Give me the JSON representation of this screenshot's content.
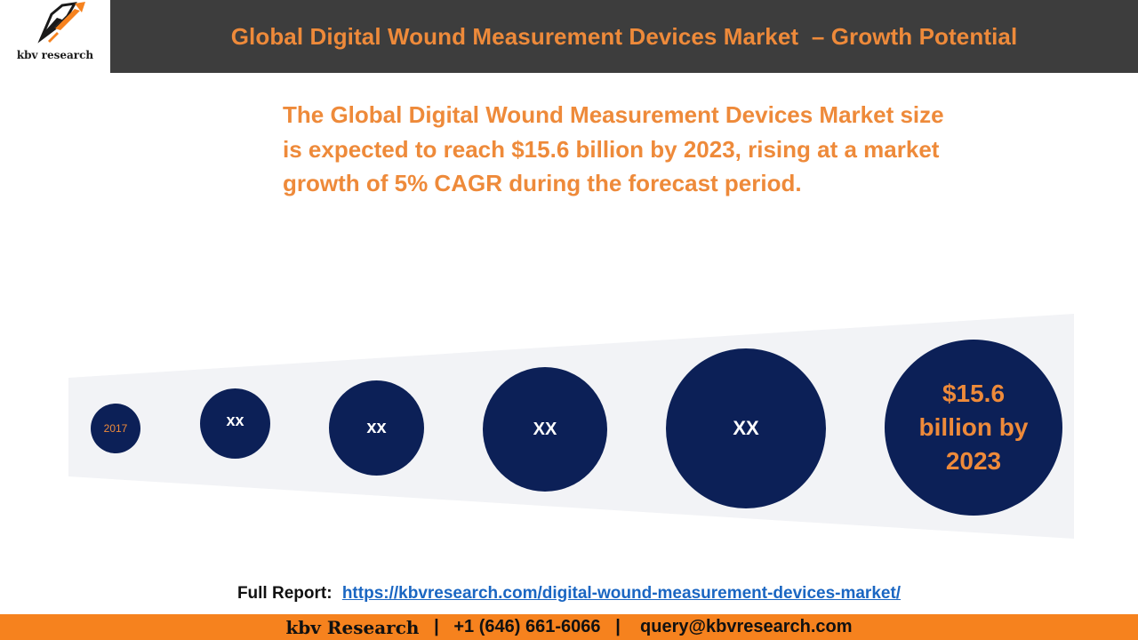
{
  "brand": {
    "logo_text": "kbv research"
  },
  "header": {
    "title": "Global Digital Wound Measurement Devices Market  – Growth Potential"
  },
  "summary": "The Global Digital Wound Measurement Devices Market size is expected to reach $15.6 billion by 2023, rising at a market growth of 5% CAGR during the forecast period.",
  "bubbles": [
    {
      "label": "2017"
    },
    {
      "label": "xx"
    },
    {
      "label": "xx"
    },
    {
      "label": "XX"
    },
    {
      "label": "XX"
    },
    {
      "label": "$15.6 billion by 2023"
    }
  ],
  "full_report": {
    "label": "Full Report:",
    "url": "https://kbvresearch.com/digital-wound-measurement-devices-market/"
  },
  "footer": {
    "brand": "kbv Research",
    "separator": "|",
    "phone": "+1 (646) 661-6066",
    "email": "query@kbvresearch.com"
  },
  "colors": {
    "accent": "#ee8a3a",
    "navy": "#0c2057",
    "header_bg": "#3d3d3d",
    "footer_bg": "#f6821e",
    "link": "#1a66c2"
  }
}
